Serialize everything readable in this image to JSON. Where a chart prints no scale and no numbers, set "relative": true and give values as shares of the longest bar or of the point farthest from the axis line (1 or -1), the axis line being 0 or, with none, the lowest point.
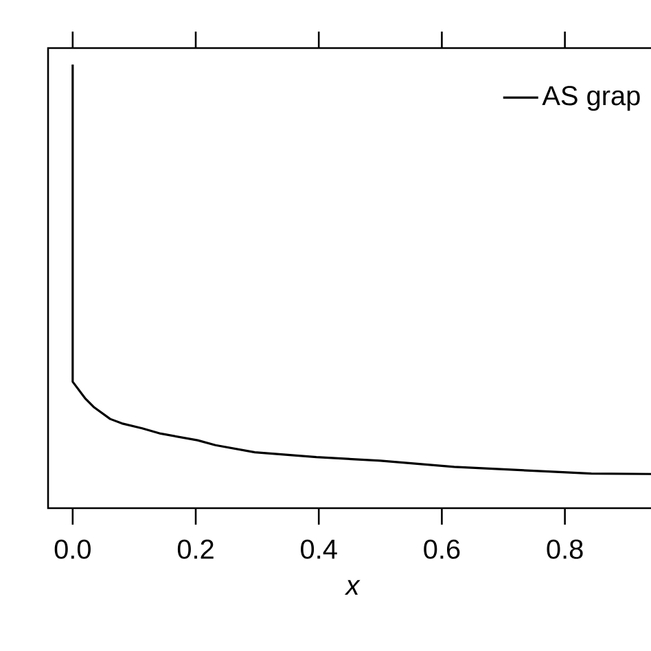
{
  "chart_data": {
    "type": "line",
    "relative": true,
    "xlabel": "x",
    "legend": "top right",
    "x": [
      0,
      0,
      0.02,
      0.035,
      0.061,
      0.08,
      0.113,
      0.143,
      0.203,
      0.232,
      0.296,
      0.396,
      0.5,
      0.62,
      0.768,
      0.843,
      0.94
    ],
    "series": [
      {
        "name": "AS grap",
        "color": "#000000",
        "values": [
          1,
          0.285,
          0.248,
          0.227,
          0.201,
          0.191,
          0.18,
          0.168,
          0.153,
          0.142,
          0.126,
          0.115,
          0.107,
          0.093,
          0.083,
          0.078,
          0.077
        ]
      }
    ],
    "xlim": [
      -0.04,
      0.95
    ],
    "xticks": [
      {
        "value": 0,
        "label": "0.0"
      },
      {
        "value": 0.2,
        "label": "0.2"
      },
      {
        "value": 0.4,
        "label": "0.4"
      },
      {
        "value": 0.6,
        "label": "0.6"
      },
      {
        "value": 0.8,
        "label": "0.8"
      }
    ],
    "grid": false,
    "marker": "none",
    "line_style": "solid"
  }
}
